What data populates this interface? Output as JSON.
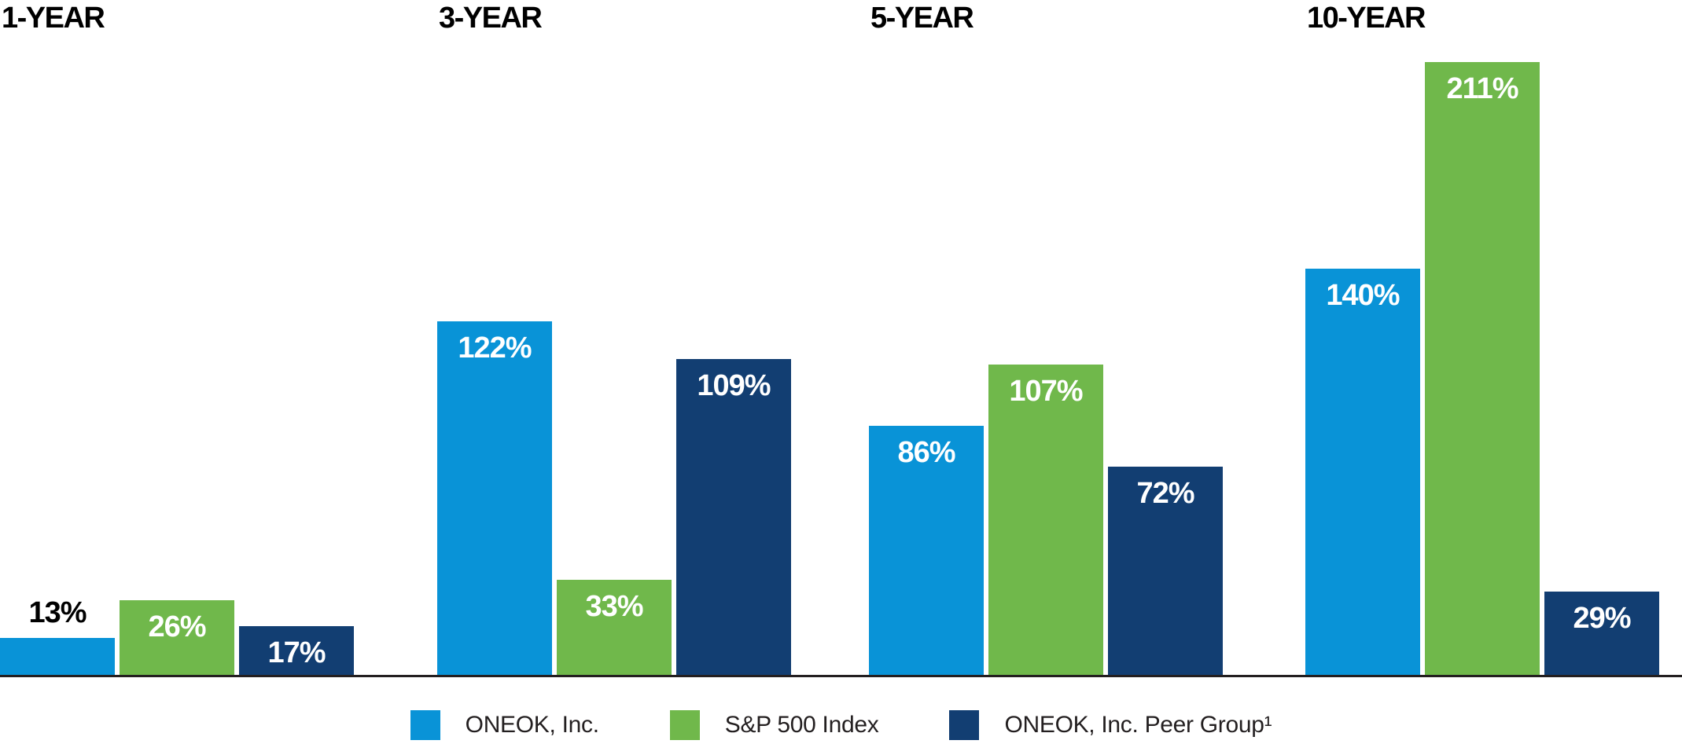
{
  "chart_data": {
    "type": "bar",
    "title": "",
    "xlabel": "",
    "ylabel": "",
    "unit": "%",
    "label_format": "{value}%",
    "categories": [
      "1-YEAR",
      "3-YEAR",
      "5-YEAR",
      "10-YEAR"
    ],
    "series": [
      {
        "name": "ONEOK, Inc.",
        "color": "#0993d7",
        "values": [
          13,
          122,
          86,
          140
        ]
      },
      {
        "name": "S&P 500 Index",
        "color": "#70b84b",
        "values": [
          26,
          33,
          107,
          211
        ]
      },
      {
        "name": "ONEOK, Inc. Peer Group¹",
        "color": "#123e72",
        "values": [
          17,
          109,
          72,
          29
        ]
      }
    ],
    "ylim": [
      0,
      220
    ],
    "grid": false,
    "legend_position": "bottom",
    "colors": {
      "background": "#ffffff",
      "axis_line": "#231f20",
      "category_label": "#000000",
      "value_label_inside": "#ffffff",
      "value_label_above": "#000000",
      "legend_text": "#231f20"
    }
  }
}
